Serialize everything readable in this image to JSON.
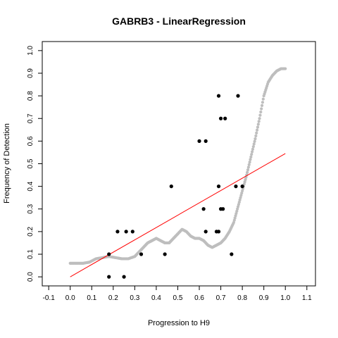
{
  "chart_data": {
    "type": "scatter",
    "title": "GABRB3 - LinearRegression",
    "xlabel": "Progression to H9",
    "ylabel": "Frequency of Detection",
    "xlim": [
      -0.13,
      1.14
    ],
    "ylim": [
      -0.04,
      1.04
    ],
    "xticks": [
      "-0.1",
      "0.0",
      "0.1",
      "0.2",
      "0.3",
      "0.4",
      "0.5",
      "0.6",
      "0.7",
      "0.8",
      "0.9",
      "1.0",
      "1.1"
    ],
    "yticks": [
      "0.0",
      "0.1",
      "0.2",
      "0.3",
      "0.4",
      "0.5",
      "0.6",
      "0.7",
      "0.8",
      "0.9",
      "1.0"
    ],
    "grid": false,
    "colors": {
      "smooth": "#bebebe",
      "points": "#000000",
      "fit": "#ff0000"
    },
    "fit_line": {
      "x": [
        0.0,
        1.0
      ],
      "y": [
        0.0,
        0.545
      ]
    },
    "smooth_curve": {
      "x": [
        0.0,
        0.03,
        0.06,
        0.09,
        0.12,
        0.15,
        0.18,
        0.21,
        0.24,
        0.27,
        0.3,
        0.32,
        0.34,
        0.36,
        0.38,
        0.4,
        0.42,
        0.44,
        0.46,
        0.48,
        0.5,
        0.52,
        0.54,
        0.56,
        0.58,
        0.6,
        0.62,
        0.64,
        0.66,
        0.68,
        0.7,
        0.72,
        0.74,
        0.76,
        0.78,
        0.8,
        0.82,
        0.84,
        0.86,
        0.88,
        0.9,
        0.92,
        0.94,
        0.96,
        0.98,
        1.0
      ],
      "y": [
        0.06,
        0.06,
        0.06,
        0.065,
        0.08,
        0.085,
        0.09,
        0.085,
        0.08,
        0.08,
        0.09,
        0.11,
        0.13,
        0.15,
        0.16,
        0.17,
        0.16,
        0.15,
        0.15,
        0.17,
        0.19,
        0.21,
        0.2,
        0.18,
        0.17,
        0.17,
        0.16,
        0.14,
        0.13,
        0.14,
        0.15,
        0.17,
        0.2,
        0.24,
        0.31,
        0.38,
        0.45,
        0.53,
        0.61,
        0.7,
        0.8,
        0.86,
        0.89,
        0.91,
        0.92,
        0.92
      ]
    },
    "points": {
      "x": [
        0.18,
        0.18,
        0.22,
        0.25,
        0.26,
        0.29,
        0.33,
        0.44,
        0.47,
        0.6,
        0.63,
        0.62,
        0.63,
        0.68,
        0.69,
        0.69,
        0.7,
        0.71,
        0.72,
        0.69,
        0.7,
        0.75,
        0.77,
        0.78,
        0.8
      ],
      "y": [
        0.1,
        0.0,
        0.2,
        0.0,
        0.2,
        0.2,
        0.1,
        0.1,
        0.4,
        0.6,
        0.6,
        0.3,
        0.2,
        0.2,
        0.2,
        0.4,
        0.3,
        0.3,
        0.7,
        0.8,
        0.7,
        0.1,
        0.4,
        0.8,
        0.4
      ]
    }
  }
}
